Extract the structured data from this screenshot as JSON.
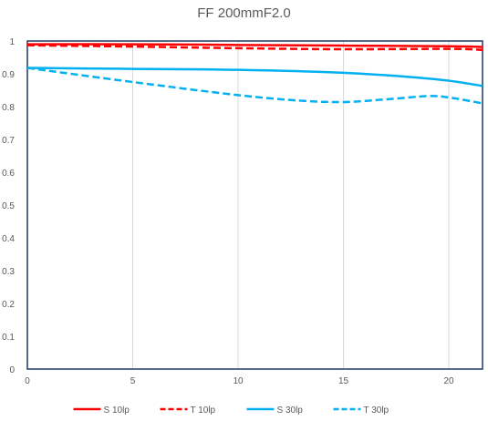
{
  "chart_data": {
    "type": "line",
    "title": "FF  200mmF2.0",
    "xlim": [
      0,
      21.6
    ],
    "ylim": [
      0,
      1
    ],
    "x_ticks": [
      0,
      5,
      10,
      15,
      20
    ],
    "y_ticks": [
      0,
      0.1,
      0.2,
      0.3,
      0.4,
      0.5,
      0.6,
      0.7,
      0.8,
      0.9,
      1
    ],
    "x_tick_labels": [
      "0",
      "5",
      "10",
      "15",
      "20"
    ],
    "y_tick_labels": [
      "0",
      "0.1",
      "0.2",
      "0.3",
      "0.4",
      "0.5",
      "0.6",
      "0.7",
      "0.8",
      "0.9",
      "1"
    ],
    "grid": "vertical",
    "legend_position": "bottom",
    "series": [
      {
        "name": "S 10lp",
        "color": "#ff0000",
        "dash": "solid",
        "x": [
          0,
          5,
          10,
          15,
          20,
          21.6
        ],
        "y": [
          0.99,
          0.99,
          0.988,
          0.986,
          0.984,
          0.982
        ]
      },
      {
        "name": "T 10lp",
        "color": "#ff0000",
        "dash": "dashed",
        "x": [
          0,
          5,
          10,
          15,
          20,
          21.6
        ],
        "y": [
          0.987,
          0.983,
          0.978,
          0.975,
          0.976,
          0.973
        ]
      },
      {
        "name": "S 30lp",
        "color": "#00b0f0",
        "dash": "solid",
        "x": [
          0,
          5,
          10,
          15,
          18,
          20,
          21.6
        ],
        "y": [
          0.918,
          0.915,
          0.912,
          0.903,
          0.891,
          0.879,
          0.863
        ]
      },
      {
        "name": "T 30lp",
        "color": "#00b0f0",
        "dash": "dashed",
        "x": [
          0,
          5,
          10,
          13,
          15,
          17,
          19,
          20,
          21.6
        ],
        "y": [
          0.918,
          0.875,
          0.835,
          0.818,
          0.814,
          0.822,
          0.832,
          0.828,
          0.81
        ]
      }
    ]
  }
}
